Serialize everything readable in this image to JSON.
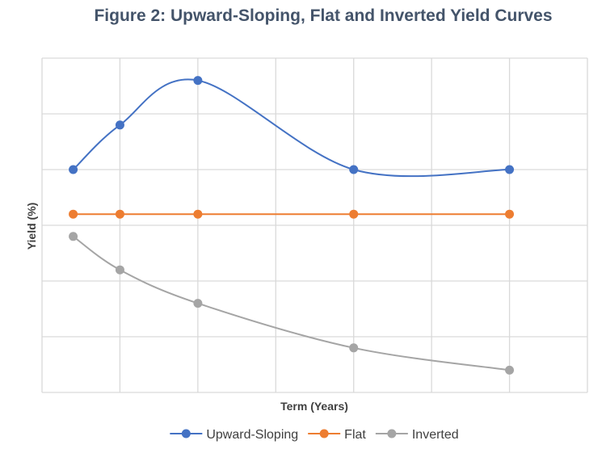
{
  "chart_data": {
    "type": "line",
    "title": "Figure 2: Upward-Sloping, Flat and Inverted Yield Curves",
    "xlabel": "Term (Years)",
    "ylabel": "Yield (%)",
    "x": [
      1,
      2,
      3.667,
      7,
      10.333
    ],
    "xlim": [
      0.333,
      12
    ],
    "ylim": [
      0,
      6
    ],
    "grid": true,
    "smooth": true,
    "legend": "bottom",
    "series": [
      {
        "name": "Upward-Sloping",
        "color": "#4472c4",
        "values": [
          4.0,
          4.8,
          5.6,
          4.0,
          4.0
        ]
      },
      {
        "name": "Flat",
        "color": "#ed7d31",
        "values": [
          3.2,
          3.2,
          3.2,
          3.2,
          3.2
        ]
      },
      {
        "name": "Inverted",
        "color": "#a5a5a5",
        "values": [
          2.8,
          2.2,
          1.6,
          0.8,
          0.4
        ]
      }
    ]
  }
}
